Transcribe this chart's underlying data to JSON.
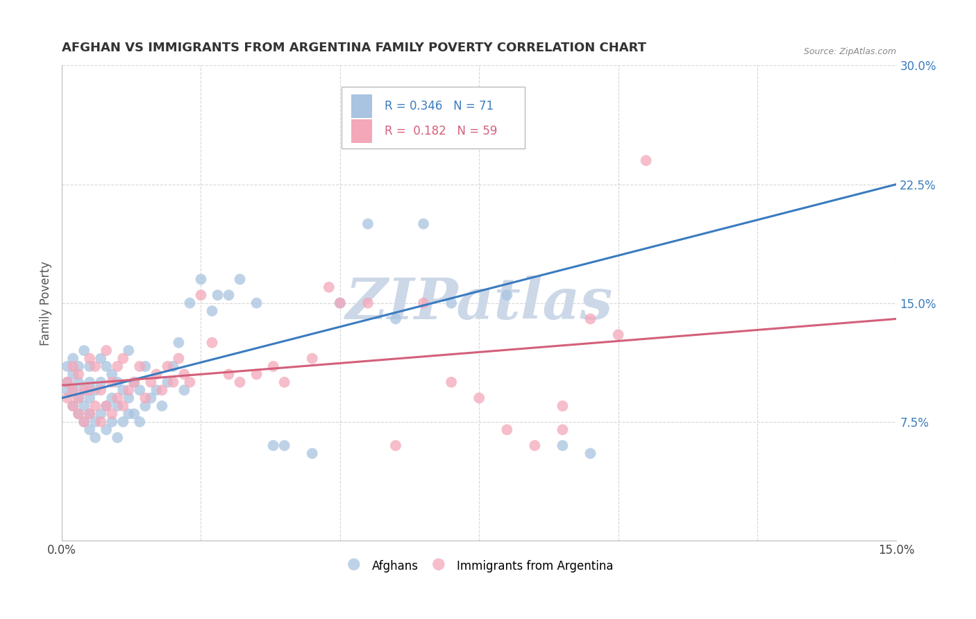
{
  "title": "AFGHAN VS IMMIGRANTS FROM ARGENTINA FAMILY POVERTY CORRELATION CHART",
  "source": "Source: ZipAtlas.com",
  "ylabel": "Family Poverty",
  "x_min": 0.0,
  "x_max": 0.15,
  "y_min": 0.0,
  "y_max": 0.3,
  "x_ticks": [
    0.0,
    0.025,
    0.05,
    0.075,
    0.1,
    0.125,
    0.15
  ],
  "x_tick_labels": [
    "0.0%",
    "",
    "",
    "",
    "",
    "",
    "15.0%"
  ],
  "y_ticks": [
    0.0,
    0.075,
    0.15,
    0.225,
    0.3
  ],
  "y_tick_labels": [
    "",
    "7.5%",
    "15.0%",
    "22.5%",
    "30.0%"
  ],
  "legend_label_1": "Afghans",
  "legend_label_2": "Immigrants from Argentina",
  "r1": 0.346,
  "n1": 71,
  "r2": 0.182,
  "n2": 59,
  "color_blue": "#a8c4e0",
  "color_pink": "#f4a7b9",
  "line_color_blue": "#3a7bbf",
  "line_color_pink": "#d45f7a",
  "blue_line_x0": 0.0,
  "blue_line_y0": 0.09,
  "blue_line_x1": 0.15,
  "blue_line_y1": 0.225,
  "pink_line_x0": 0.0,
  "pink_line_y0": 0.098,
  "pink_line_x1": 0.15,
  "pink_line_y1": 0.14,
  "afghans_x": [
    0.001,
    0.001,
    0.001,
    0.002,
    0.002,
    0.002,
    0.002,
    0.003,
    0.003,
    0.003,
    0.003,
    0.004,
    0.004,
    0.004,
    0.004,
    0.005,
    0.005,
    0.005,
    0.005,
    0.005,
    0.006,
    0.006,
    0.006,
    0.007,
    0.007,
    0.007,
    0.008,
    0.008,
    0.008,
    0.009,
    0.009,
    0.009,
    0.01,
    0.01,
    0.01,
    0.011,
    0.011,
    0.012,
    0.012,
    0.012,
    0.013,
    0.013,
    0.014,
    0.014,
    0.015,
    0.015,
    0.016,
    0.017,
    0.018,
    0.019,
    0.02,
    0.021,
    0.022,
    0.023,
    0.025,
    0.027,
    0.028,
    0.03,
    0.032,
    0.035,
    0.038,
    0.04,
    0.045,
    0.05,
    0.055,
    0.06,
    0.065,
    0.07,
    0.08,
    0.09,
    0.095
  ],
  "afghans_y": [
    0.095,
    0.1,
    0.11,
    0.085,
    0.095,
    0.105,
    0.115,
    0.08,
    0.09,
    0.1,
    0.11,
    0.075,
    0.085,
    0.095,
    0.12,
    0.07,
    0.08,
    0.09,
    0.1,
    0.11,
    0.065,
    0.075,
    0.095,
    0.08,
    0.1,
    0.115,
    0.07,
    0.085,
    0.11,
    0.075,
    0.09,
    0.105,
    0.065,
    0.085,
    0.1,
    0.075,
    0.095,
    0.08,
    0.09,
    0.12,
    0.08,
    0.1,
    0.075,
    0.095,
    0.085,
    0.11,
    0.09,
    0.095,
    0.085,
    0.1,
    0.11,
    0.125,
    0.095,
    0.15,
    0.165,
    0.145,
    0.155,
    0.155,
    0.165,
    0.15,
    0.06,
    0.06,
    0.055,
    0.15,
    0.2,
    0.14,
    0.2,
    0.15,
    0.155,
    0.06,
    0.055
  ],
  "argentina_x": [
    0.001,
    0.001,
    0.002,
    0.002,
    0.002,
    0.003,
    0.003,
    0.003,
    0.004,
    0.004,
    0.005,
    0.005,
    0.005,
    0.006,
    0.006,
    0.007,
    0.007,
    0.008,
    0.008,
    0.009,
    0.009,
    0.01,
    0.01,
    0.011,
    0.011,
    0.012,
    0.013,
    0.014,
    0.015,
    0.016,
    0.017,
    0.018,
    0.019,
    0.02,
    0.021,
    0.022,
    0.023,
    0.025,
    0.027,
    0.03,
    0.032,
    0.035,
    0.038,
    0.04,
    0.045,
    0.048,
    0.05,
    0.055,
    0.06,
    0.065,
    0.07,
    0.075,
    0.08,
    0.09,
    0.095,
    0.1,
    0.105,
    0.09,
    0.085
  ],
  "argentina_y": [
    0.09,
    0.1,
    0.085,
    0.095,
    0.11,
    0.08,
    0.09,
    0.105,
    0.075,
    0.095,
    0.08,
    0.095,
    0.115,
    0.085,
    0.11,
    0.075,
    0.095,
    0.085,
    0.12,
    0.08,
    0.1,
    0.09,
    0.11,
    0.085,
    0.115,
    0.095,
    0.1,
    0.11,
    0.09,
    0.1,
    0.105,
    0.095,
    0.11,
    0.1,
    0.115,
    0.105,
    0.1,
    0.155,
    0.125,
    0.105,
    0.1,
    0.105,
    0.11,
    0.1,
    0.115,
    0.16,
    0.15,
    0.15,
    0.06,
    0.15,
    0.1,
    0.09,
    0.07,
    0.07,
    0.14,
    0.13,
    0.24,
    0.085,
    0.06
  ],
  "watermark": "ZIPatlas",
  "watermark_color": "#ccd8e8",
  "grid_color": "#cccccc",
  "background_color": "#ffffff"
}
